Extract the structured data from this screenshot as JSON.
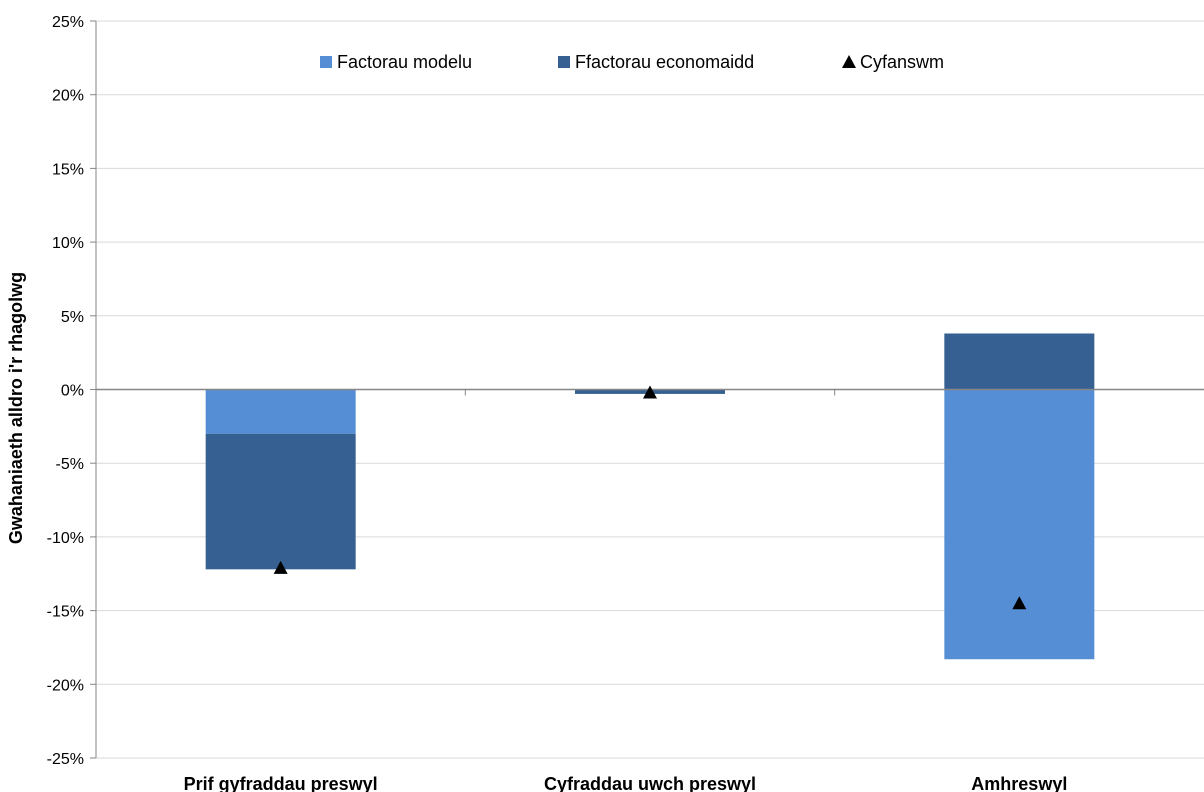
{
  "chart_data": {
    "type": "bar",
    "stacked": true,
    "title": "",
    "xlabel": "",
    "ylabel": "Gwahaniaeth alldro i'r rhagolwg",
    "ylim": [
      -25,
      25
    ],
    "yticks": [
      25,
      20,
      15,
      10,
      5,
      0,
      -5,
      -10,
      -15,
      -20,
      -25
    ],
    "ytick_format": "percent",
    "grid": true,
    "legend": "top-center",
    "categories": [
      "Prif gyfraddau preswyl",
      "Cyfraddau uwch preswyl",
      "Amhreswyl"
    ],
    "series": [
      {
        "name": "Factorau modelu",
        "kind": "bar",
        "color": "#558ed5",
        "values": [
          -3.0,
          0.0,
          -18.3
        ]
      },
      {
        "name": "Ffactorau economaidd",
        "kind": "bar",
        "color": "#366092",
        "values": [
          -9.2,
          -0.3,
          3.8
        ]
      },
      {
        "name": "Cyfanswm",
        "kind": "marker",
        "marker": "triangle",
        "color": "#000000",
        "values": [
          -12.1,
          -0.2,
          -14.5
        ]
      }
    ]
  }
}
